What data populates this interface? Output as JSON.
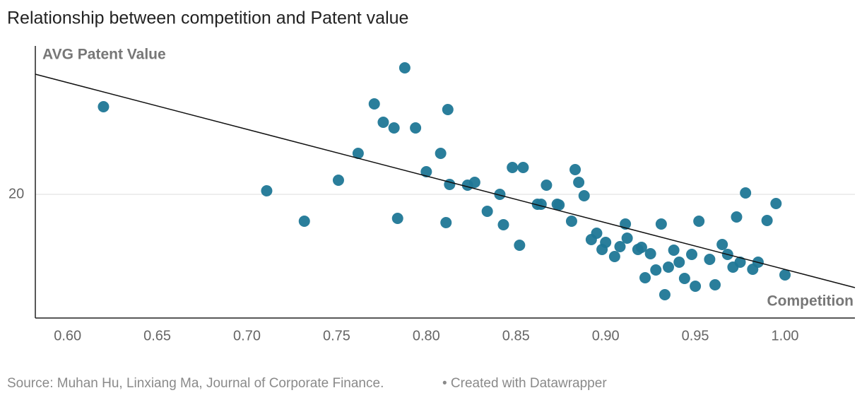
{
  "chart_data": {
    "type": "scatter",
    "title": "Relationship between competition and Patent value",
    "y_label": "AVG Patent Value",
    "x_label": "Competition",
    "source": "Source: Muhan Hu, Linxiang Ma, Journal of Corporate Finance.",
    "credit": "• Created with Datawrapper",
    "color": "#1f7796",
    "xlim": [
      0.582,
      1.039
    ],
    "ylim": [
      13,
      28.4
    ],
    "xticks": [
      {
        "value": 0.6,
        "label": "0.60"
      },
      {
        "value": 0.65,
        "label": "0.65"
      },
      {
        "value": 0.7,
        "label": "0.70"
      },
      {
        "value": 0.75,
        "label": "0.75"
      },
      {
        "value": 0.8,
        "label": "0.80"
      },
      {
        "value": 0.85,
        "label": "0.85"
      },
      {
        "value": 0.9,
        "label": "0.90"
      },
      {
        "value": 0.95,
        "label": "0.95"
      },
      {
        "value": 1.0,
        "label": "1.00"
      }
    ],
    "yticks": [
      20
    ],
    "grid": true,
    "trend_line": {
      "x": [
        0.582,
        1.039
      ],
      "y": [
        26.8,
        14.72
      ]
    },
    "x": [
      0.62,
      0.711,
      0.732,
      0.751,
      0.762,
      0.771,
      0.776,
      0.782,
      0.784,
      0.788,
      0.794,
      0.8,
      0.808,
      0.811,
      0.812,
      0.813,
      0.823,
      0.827,
      0.834,
      0.841,
      0.843,
      0.848,
      0.852,
      0.854,
      0.862,
      0.864,
      0.867,
      0.873,
      0.874,
      0.881,
      0.883,
      0.885,
      0.888,
      0.892,
      0.895,
      0.898,
      0.9,
      0.905,
      0.908,
      0.911,
      0.912,
      0.918,
      0.92,
      0.922,
      0.925,
      0.928,
      0.931,
      0.933,
      0.935,
      0.938,
      0.941,
      0.944,
      0.948,
      0.95,
      0.952,
      0.958,
      0.961,
      0.965,
      0.968,
      0.971,
      0.973,
      0.975,
      0.978,
      0.982,
      0.985,
      0.99,
      0.995,
      1.0
    ],
    "values": [
      24.96,
      20.2,
      18.48,
      20.8,
      22.32,
      25.12,
      24.08,
      23.76,
      18.64,
      27.16,
      23.76,
      21.28,
      22.32,
      18.4,
      24.8,
      20.56,
      20.52,
      20.68,
      19.04,
      20.0,
      18.28,
      21.52,
      17.12,
      21.52,
      19.44,
      19.44,
      20.52,
      19.44,
      19.4,
      18.48,
      21.4,
      20.68,
      19.92,
      17.44,
      17.8,
      16.88,
      17.28,
      16.48,
      17.04,
      18.32,
      17.52,
      16.88,
      17.0,
      15.28,
      16.64,
      15.72,
      18.32,
      14.32,
      15.88,
      16.84,
      16.16,
      15.24,
      16.6,
      14.8,
      18.48,
      16.32,
      14.88,
      17.16,
      16.6,
      15.88,
      18.72,
      16.16,
      20.08,
      15.76,
      16.16,
      18.52,
      19.48,
      15.44
    ]
  }
}
